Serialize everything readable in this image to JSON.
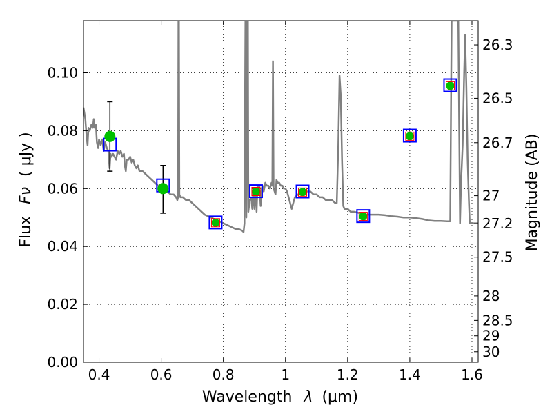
{
  "chart_data": {
    "type": "scatter",
    "title": "",
    "xlabel": "Wavelength",
    "xlabel_symbol": "λ",
    "xlabel_unit": "(μm)",
    "ylabel": "Flux",
    "ylabel_symbol": "Fν",
    "ylabel_unit": "( μJy )",
    "y2label": "Magnitude (AB)",
    "xlim": [
      0.35,
      1.62
    ],
    "ylim": [
      0.0,
      0.118
    ],
    "grid": true,
    "x_ticks": [
      {
        "value": 0.4,
        "label": "0.4"
      },
      {
        "value": 0.6,
        "label": "0.6"
      },
      {
        "value": 0.8,
        "label": "0.8"
      },
      {
        "value": 1.0,
        "label": "1"
      },
      {
        "value": 1.2,
        "label": "1.2"
      },
      {
        "value": 1.4,
        "label": "1.4"
      },
      {
        "value": 1.6,
        "label": "1.6"
      }
    ],
    "y_ticks": [
      {
        "value": 0.0,
        "label": "0.00"
      },
      {
        "value": 0.02,
        "label": "0.02"
      },
      {
        "value": 0.04,
        "label": "0.04"
      },
      {
        "value": 0.06,
        "label": "0.06"
      },
      {
        "value": 0.08,
        "label": "0.08"
      },
      {
        "value": 0.1,
        "label": "0.10"
      }
    ],
    "y2_ticks": [
      {
        "value": 26.3,
        "label": "26.3"
      },
      {
        "value": 26.5,
        "label": "26.5"
      },
      {
        "value": 26.7,
        "label": "26.7"
      },
      {
        "value": 27.0,
        "label": "27"
      },
      {
        "value": 27.2,
        "label": "27.2"
      },
      {
        "value": 27.5,
        "label": "27.5"
      },
      {
        "value": 28.0,
        "label": "28"
      },
      {
        "value": 28.5,
        "label": "28.5"
      },
      {
        "value": 29.0,
        "label": "29"
      },
      {
        "value": 30.0,
        "label": "30"
      }
    ],
    "series": [
      {
        "kind": "line",
        "color": "#808080",
        "points": [
          [
            0.35,
            0.088
          ],
          [
            0.356,
            0.084
          ],
          [
            0.36,
            0.078
          ],
          [
            0.363,
            0.075
          ],
          [
            0.366,
            0.081
          ],
          [
            0.37,
            0.08
          ],
          [
            0.375,
            0.082
          ],
          [
            0.38,
            0.081
          ],
          [
            0.383,
            0.084
          ],
          [
            0.386,
            0.081
          ],
          [
            0.39,
            0.082
          ],
          [
            0.393,
            0.076
          ],
          [
            0.397,
            0.074
          ],
          [
            0.4,
            0.077
          ],
          [
            0.405,
            0.075
          ],
          [
            0.41,
            0.077
          ],
          [
            0.415,
            0.073
          ],
          [
            0.42,
            0.076
          ],
          [
            0.425,
            0.074
          ],
          [
            0.43,
            0.073
          ],
          [
            0.434,
            0.067
          ],
          [
            0.437,
            0.072
          ],
          [
            0.44,
            0.071
          ],
          [
            0.445,
            0.072
          ],
          [
            0.45,
            0.071
          ],
          [
            0.455,
            0.07
          ],
          [
            0.46,
            0.073
          ],
          [
            0.465,
            0.072
          ],
          [
            0.47,
            0.073
          ],
          [
            0.475,
            0.071
          ],
          [
            0.48,
            0.072
          ],
          [
            0.483,
            0.068
          ],
          [
            0.486,
            0.066
          ],
          [
            0.489,
            0.07
          ],
          [
            0.495,
            0.07
          ],
          [
            0.5,
            0.071
          ],
          [
            0.505,
            0.069
          ],
          [
            0.51,
            0.07
          ],
          [
            0.515,
            0.068
          ],
          [
            0.52,
            0.067
          ],
          [
            0.525,
            0.068
          ],
          [
            0.53,
            0.066
          ],
          [
            0.54,
            0.066
          ],
          [
            0.55,
            0.065
          ],
          [
            0.56,
            0.064
          ],
          [
            0.57,
            0.063
          ],
          [
            0.58,
            0.062
          ],
          [
            0.59,
            0.061
          ],
          [
            0.6,
            0.06
          ],
          [
            0.61,
            0.06
          ],
          [
            0.62,
            0.059
          ],
          [
            0.63,
            0.058
          ],
          [
            0.64,
            0.058
          ],
          [
            0.648,
            0.057
          ],
          [
            0.652,
            0.056
          ],
          [
            0.6543,
            0.057
          ],
          [
            0.6556,
            0.118
          ],
          [
            0.657,
            0.118
          ],
          [
            0.6583,
            0.058
          ],
          [
            0.662,
            0.057
          ],
          [
            0.67,
            0.057
          ],
          [
            0.68,
            0.056
          ],
          [
            0.69,
            0.056
          ],
          [
            0.7,
            0.055
          ],
          [
            0.72,
            0.053
          ],
          [
            0.74,
            0.051
          ],
          [
            0.76,
            0.05
          ],
          [
            0.78,
            0.049
          ],
          [
            0.8,
            0.048
          ],
          [
            0.82,
            0.047
          ],
          [
            0.84,
            0.046
          ],
          [
            0.85,
            0.046
          ],
          [
            0.86,
            0.0455
          ],
          [
            0.865,
            0.045
          ],
          [
            0.868,
            0.048
          ],
          [
            0.8712,
            0.118
          ],
          [
            0.8727,
            0.118
          ],
          [
            0.874,
            0.05
          ],
          [
            0.8775,
            0.118
          ],
          [
            0.879,
            0.118
          ],
          [
            0.8805,
            0.052
          ],
          [
            0.885,
            0.056
          ],
          [
            0.89,
            0.057
          ],
          [
            0.893,
            0.053
          ],
          [
            0.896,
            0.059
          ],
          [
            0.9,
            0.053
          ],
          [
            0.903,
            0.06
          ],
          [
            0.907,
            0.052
          ],
          [
            0.91,
            0.061
          ],
          [
            0.913,
            0.059
          ],
          [
            0.916,
            0.061
          ],
          [
            0.92,
            0.054
          ],
          [
            0.923,
            0.06
          ],
          [
            0.926,
            0.061
          ],
          [
            0.93,
            0.059
          ],
          [
            0.935,
            0.062
          ],
          [
            0.94,
            0.061
          ],
          [
            0.945,
            0.061
          ],
          [
            0.95,
            0.06
          ],
          [
            0.955,
            0.062
          ],
          [
            0.9578,
            0.061
          ],
          [
            0.9597,
            0.104
          ],
          [
            0.9616,
            0.06
          ],
          [
            0.965,
            0.059
          ],
          [
            0.968,
            0.058
          ],
          [
            0.971,
            0.063
          ],
          [
            0.975,
            0.062
          ],
          [
            0.98,
            0.062
          ],
          [
            0.985,
            0.061
          ],
          [
            0.99,
            0.061
          ],
          [
            0.995,
            0.06
          ],
          [
            1.0,
            0.06
          ],
          [
            1.005,
            0.059
          ],
          [
            1.01,
            0.057
          ],
          [
            1.015,
            0.055
          ],
          [
            1.02,
            0.053
          ],
          [
            1.025,
            0.055
          ],
          [
            1.03,
            0.057
          ],
          [
            1.04,
            0.058
          ],
          [
            1.05,
            0.058
          ],
          [
            1.06,
            0.058
          ],
          [
            1.065,
            0.059
          ],
          [
            1.08,
            0.059
          ],
          [
            1.09,
            0.058
          ],
          [
            1.1,
            0.058
          ],
          [
            1.11,
            0.057
          ],
          [
            1.12,
            0.057
          ],
          [
            1.13,
            0.056
          ],
          [
            1.14,
            0.056
          ],
          [
            1.15,
            0.056
          ],
          [
            1.16,
            0.055
          ],
          [
            1.165,
            0.055
          ],
          [
            1.17,
            0.075
          ],
          [
            1.174,
            0.099
          ],
          [
            1.178,
            0.092
          ],
          [
            1.182,
            0.07
          ],
          [
            1.186,
            0.054
          ],
          [
            1.19,
            0.053
          ],
          [
            1.2,
            0.053
          ],
          [
            1.21,
            0.052
          ],
          [
            1.22,
            0.052
          ],
          [
            1.24,
            0.0515
          ],
          [
            1.26,
            0.051
          ],
          [
            1.28,
            0.051
          ],
          [
            1.3,
            0.051
          ],
          [
            1.32,
            0.0508
          ],
          [
            1.34,
            0.0505
          ],
          [
            1.36,
            0.0503
          ],
          [
            1.38,
            0.05
          ],
          [
            1.4,
            0.05
          ],
          [
            1.42,
            0.0498
          ],
          [
            1.44,
            0.0495
          ],
          [
            1.46,
            0.049
          ],
          [
            1.48,
            0.0488
          ],
          [
            1.5,
            0.0488
          ],
          [
            1.52,
            0.0487
          ],
          [
            1.53,
            0.0487
          ],
          [
            1.5345,
            0.118
          ],
          [
            1.542,
            0.118
          ],
          [
            1.55,
            0.118
          ],
          [
            1.556,
            0.118
          ],
          [
            1.5615,
            0.048
          ],
          [
            1.565,
            0.062
          ],
          [
            1.57,
            0.075
          ],
          [
            1.575,
            0.1
          ],
          [
            1.578,
            0.113
          ],
          [
            1.582,
            0.095
          ],
          [
            1.586,
            0.07
          ],
          [
            1.59,
            0.056
          ],
          [
            1.593,
            0.048
          ],
          [
            1.6,
            0.048
          ],
          [
            1.62,
            0.048
          ]
        ]
      },
      {
        "kind": "model_photometry",
        "marker": "square",
        "color": "#0000ff",
        "points": [
          [
            0.435,
            0.0752
          ],
          [
            0.606,
            0.0611
          ],
          [
            0.775,
            0.0483
          ],
          [
            0.905,
            0.0591
          ],
          [
            1.055,
            0.059
          ],
          [
            1.25,
            0.0505
          ],
          [
            1.4,
            0.0783
          ],
          [
            1.53,
            0.0957
          ]
        ]
      },
      {
        "kind": "synthetic_photometry",
        "marker": "square",
        "color": "#ff0000",
        "points": [
          [
            0.775,
            0.0482
          ],
          [
            0.905,
            0.059
          ],
          [
            1.055,
            0.0588
          ],
          [
            1.25,
            0.0504
          ],
          [
            1.4,
            0.0781
          ],
          [
            1.53,
            0.0955
          ]
        ]
      },
      {
        "kind": "observed",
        "marker": "circle",
        "color": "#00c000",
        "points": [
          [
            0.435,
            0.078,
            0.066,
            0.09
          ],
          [
            0.606,
            0.06,
            0.0515,
            0.068
          ],
          [
            0.775,
            0.0482,
            null,
            null
          ],
          [
            0.905,
            0.059,
            null,
            null
          ],
          [
            1.055,
            0.0588,
            null,
            null
          ],
          [
            1.25,
            0.0504,
            null,
            null
          ],
          [
            1.4,
            0.0781,
            null,
            null
          ],
          [
            1.53,
            0.0955,
            null,
            null
          ]
        ]
      }
    ]
  }
}
